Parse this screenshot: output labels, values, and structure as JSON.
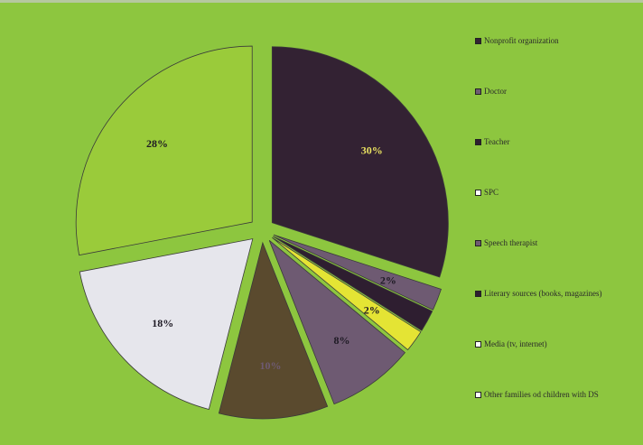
{
  "chart_data": {
    "type": "pie",
    "title": "",
    "slices": [
      {
        "name": "Nonprofit organization",
        "value": 30,
        "label": "30%",
        "color": "#332233",
        "label_color": "#e8e060"
      },
      {
        "name": "Doctor",
        "value": 2,
        "label": "2%",
        "color": "#6e5a72",
        "label_color": "#1e1a24"
      },
      {
        "name": "Teacher",
        "value": 2,
        "label": "",
        "color": "#2e1e30",
        "label_color": "#1e1a24"
      },
      {
        "name": "SPC",
        "value": 2,
        "label": "2%",
        "color": "#e4e434",
        "label_color": "#1e1a24"
      },
      {
        "name": "Speech therapist",
        "value": 8,
        "label": "8%",
        "color": "#6e5a72",
        "label_color": "#1e1a24"
      },
      {
        "name": "Literary sources (books, magazines)",
        "value": 10,
        "label": "10%",
        "color": "#5a4a2e",
        "label_color": "#6e5a72"
      },
      {
        "name": "Media (tv, internet)",
        "value": 18,
        "label": "18%",
        "color": "#e6e6ec",
        "label_color": "#1e1a24"
      },
      {
        "name": "Other families od children with DS",
        "value": 28,
        "label": "28%",
        "color": "#9acb3a",
        "label_color": "#1e1a24"
      }
    ],
    "legend": [
      {
        "label": "Nonprofit organization",
        "color": "#332233"
      },
      {
        "label": "Doctor",
        "color": "#6e5a72"
      },
      {
        "label": "Teacher",
        "color": "#2e1e30"
      },
      {
        "label": "SPC",
        "color": "#ffffff"
      },
      {
        "label": "Speech therapist",
        "color": "#6e5a72"
      },
      {
        "label": "Literary sources (books, magazines)",
        "color": "#2e1e30"
      },
      {
        "label": "Media (tv, internet)",
        "color": "#ffffff"
      },
      {
        "label": "Other families od children with DS",
        "color": "#ffffff"
      }
    ],
    "legend_position": "right",
    "background": "#8dc63f"
  }
}
